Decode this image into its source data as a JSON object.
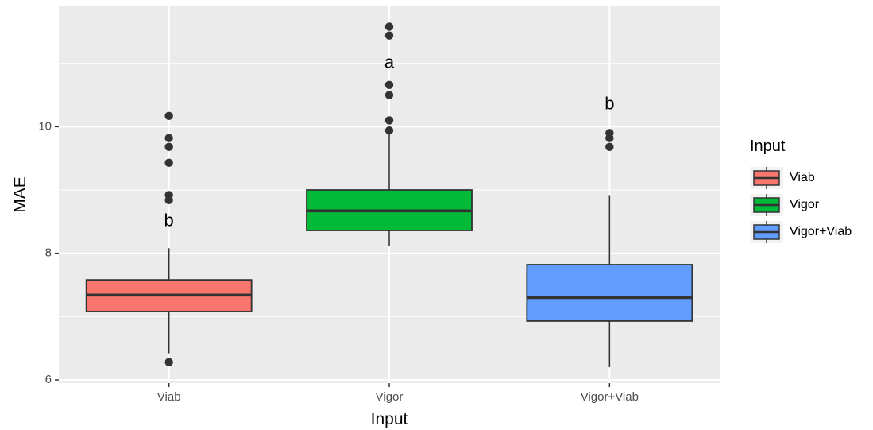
{
  "chart_data": {
    "type": "boxplot",
    "xlabel": "Input",
    "ylabel": "MAE",
    "ylim": [
      5.95,
      11.9
    ],
    "yticks": [
      6,
      8,
      10
    ],
    "grid": true,
    "legend": {
      "title": "Input",
      "position": "right"
    },
    "categories": [
      "Viab",
      "Vigor",
      "Vigor+Viab"
    ],
    "boxes": [
      {
        "name": "Viab",
        "color": "#F8766D",
        "lower_whisker": 6.42,
        "q1": 7.08,
        "median": 7.34,
        "q3": 7.58,
        "upper_whisker": 8.08,
        "outliers": [
          6.28,
          8.84,
          8.92,
          9.43,
          9.68,
          9.82,
          10.17
        ],
        "annotation": "b"
      },
      {
        "name": "Vigor",
        "color": "#00BA38",
        "lower_whisker": 8.12,
        "q1": 8.36,
        "median": 8.67,
        "q3": 9.0,
        "upper_whisker": 9.92,
        "outliers": [
          9.94,
          10.1,
          10.5,
          10.66,
          11.44,
          11.58
        ],
        "annotation": "a"
      },
      {
        "name": "Vigor+Viab",
        "color": "#619CFF",
        "lower_whisker": 6.2,
        "q1": 6.93,
        "median": 7.3,
        "q3": 7.82,
        "upper_whisker": 8.92,
        "outliers": [
          9.68,
          9.82,
          9.9
        ],
        "annotation": "b"
      }
    ]
  }
}
